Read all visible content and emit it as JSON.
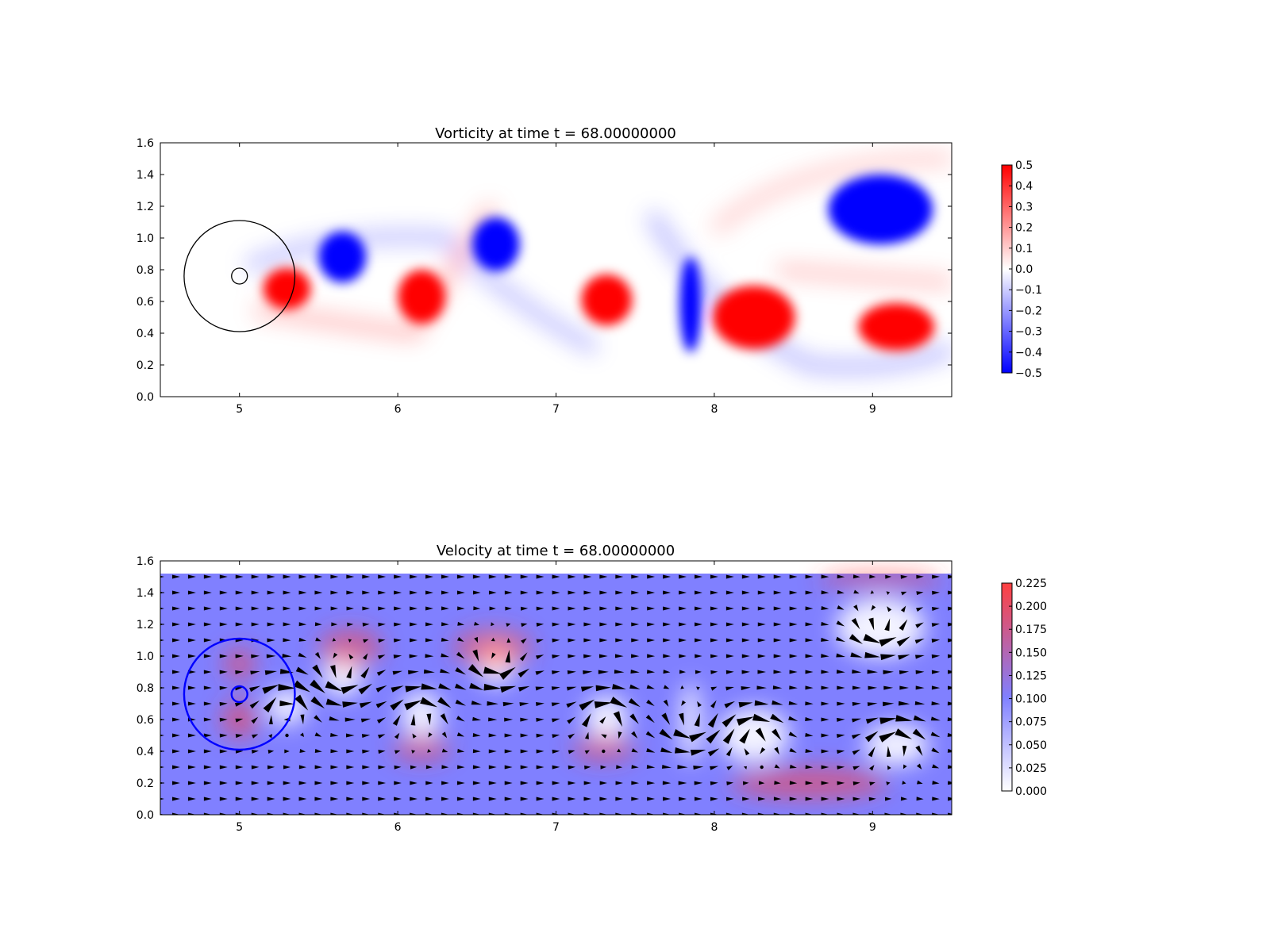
{
  "colors": {
    "positive": "#ff0000",
    "negative": "#0000ff",
    "speed_low": "#ffffff",
    "speed_mid": "#8080ff",
    "speed_high": "#ff4040",
    "arrow": "#000000",
    "circle_top": "#000000",
    "circle_bottom": "#0000ff"
  },
  "chart_data": [
    {
      "type": "heatmap",
      "field": "vorticity",
      "title": "Vorticity at time t =    68.00000000",
      "xlim": [
        4.5,
        9.5
      ],
      "ylim": [
        0.0,
        1.6
      ],
      "domain_y": [
        0.0,
        1.52
      ],
      "x_ticks": [
        "5",
        "6",
        "7",
        "8",
        "9"
      ],
      "y_ticks": [
        "0.0",
        "0.2",
        "0.4",
        "0.6",
        "0.8",
        "1.0",
        "1.2",
        "1.4",
        "1.6"
      ],
      "grid": false,
      "colormap": "bwr",
      "colorbar": {
        "range": [
          -0.5,
          0.5
        ],
        "ticks": [
          "0.5",
          "0.4",
          "0.3",
          "0.2",
          "0.1",
          "0.0",
          "−0.1",
          "−0.2",
          "−0.3",
          "−0.4",
          "−0.5"
        ]
      },
      "vortices": [
        {
          "x": 9.05,
          "y": 1.18,
          "rx": 0.33,
          "ry": 0.22,
          "sign": -1
        },
        {
          "x": 9.15,
          "y": 0.44,
          "rx": 0.24,
          "ry": 0.15,
          "sign": 1
        },
        {
          "x": 8.25,
          "y": 0.5,
          "rx": 0.26,
          "ry": 0.2,
          "sign": 1
        },
        {
          "x": 7.85,
          "y": 0.58,
          "rx": 0.07,
          "ry": 0.3,
          "sign": -1
        },
        {
          "x": 7.32,
          "y": 0.61,
          "rx": 0.16,
          "ry": 0.16,
          "sign": 1
        },
        {
          "x": 6.62,
          "y": 0.96,
          "rx": 0.15,
          "ry": 0.17,
          "sign": -1
        },
        {
          "x": 6.15,
          "y": 0.63,
          "rx": 0.15,
          "ry": 0.17,
          "sign": 1
        },
        {
          "x": 5.65,
          "y": 0.88,
          "rx": 0.15,
          "ry": 0.16,
          "sign": -1
        },
        {
          "x": 5.3,
          "y": 0.68,
          "rx": 0.15,
          "ry": 0.13,
          "sign": 1
        }
      ],
      "circles": [
        {
          "x": 5.0,
          "y": 0.76,
          "r": 0.35
        },
        {
          "x": 5.0,
          "y": 0.76,
          "r": 0.05
        }
      ]
    },
    {
      "type": "heatmap",
      "field": "velocity magnitude with quiver arrows",
      "title": "Velocity at time t =    68.00000000",
      "xlim": [
        4.5,
        9.5
      ],
      "ylim": [
        0.0,
        1.6
      ],
      "domain_y": [
        0.0,
        1.52
      ],
      "x_ticks": [
        "5",
        "6",
        "7",
        "8",
        "9"
      ],
      "y_ticks": [
        "0.0",
        "0.2",
        "0.4",
        "0.6",
        "0.8",
        "1.0",
        "1.2",
        "1.4",
        "1.6"
      ],
      "grid": false,
      "colormap": "white-blue-red",
      "colorbar": {
        "range": [
          0.0,
          0.225
        ],
        "ticks": [
          "0.225",
          "0.200",
          "0.175",
          "0.150",
          "0.125",
          "0.100",
          "0.075",
          "0.050",
          "0.025",
          "0.000"
        ]
      },
      "quiver_spacing": 0.1,
      "circles": [
        {
          "x": 5.0,
          "y": 0.76,
          "r": 0.35
        },
        {
          "x": 5.0,
          "y": 0.76,
          "r": 0.05
        }
      ]
    }
  ]
}
